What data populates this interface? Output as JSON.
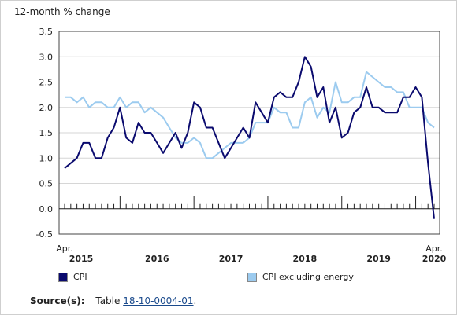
{
  "chart_data": {
    "type": "line",
    "ylabel": "12-month % change",
    "ylim": [
      -0.5,
      3.5
    ],
    "yticks": [
      "3.5",
      "3.0",
      "2.5",
      "2.0",
      "1.5",
      "1.0",
      "0.5",
      "0.0",
      "-0.5"
    ],
    "x_start_label": "Apr.",
    "x_end_label": "Apr.",
    "years": [
      "2015",
      "2016",
      "2017",
      "2018",
      "2019",
      "2020"
    ],
    "grid": true,
    "legend_position": "bottom",
    "series": [
      {
        "name": "CPI",
        "color": "#0a0a6e",
        "values": [
          0.8,
          0.9,
          1.0,
          1.3,
          1.3,
          1.0,
          1.0,
          1.4,
          1.6,
          2.0,
          1.4,
          1.3,
          1.7,
          1.5,
          1.5,
          1.3,
          1.1,
          1.3,
          1.5,
          1.2,
          1.5,
          2.1,
          2.0,
          1.6,
          1.6,
          1.3,
          1.0,
          1.2,
          1.4,
          1.6,
          1.4,
          2.1,
          1.9,
          1.7,
          2.2,
          2.3,
          2.2,
          2.2,
          2.5,
          3.0,
          2.8,
          2.2,
          2.4,
          1.7,
          2.0,
          1.4,
          1.5,
          1.9,
          2.0,
          2.4,
          2.0,
          2.0,
          1.9,
          1.9,
          1.9,
          2.2,
          2.2,
          2.4,
          2.2,
          0.9,
          -0.2
        ]
      },
      {
        "name": "CPI excluding energy",
        "color": "#9ccbef",
        "values": [
          2.2,
          2.2,
          2.1,
          2.2,
          2.0,
          2.1,
          2.1,
          2.0,
          2.0,
          2.2,
          2.0,
          2.1,
          2.1,
          1.9,
          2.0,
          1.9,
          1.8,
          1.6,
          1.4,
          1.3,
          1.3,
          1.4,
          1.3,
          1.0,
          1.0,
          1.1,
          1.2,
          1.3,
          1.3,
          1.3,
          1.4,
          1.7,
          1.7,
          1.7,
          2.0,
          1.9,
          1.9,
          1.6,
          1.6,
          2.1,
          2.2,
          1.8,
          2.0,
          1.9,
          2.5,
          2.1,
          2.1,
          2.2,
          2.2,
          2.7,
          2.6,
          2.5,
          2.4,
          2.4,
          2.3,
          2.3,
          2.0,
          2.0,
          2.0,
          1.7,
          1.6
        ]
      }
    ]
  },
  "legend": {
    "cpi": "CPI",
    "cpi_ex_energy": "CPI excluding energy"
  },
  "source": {
    "label": "Source(s):",
    "prefix": "Table",
    "link_text": "18-10-0004-01",
    "suffix": "."
  }
}
